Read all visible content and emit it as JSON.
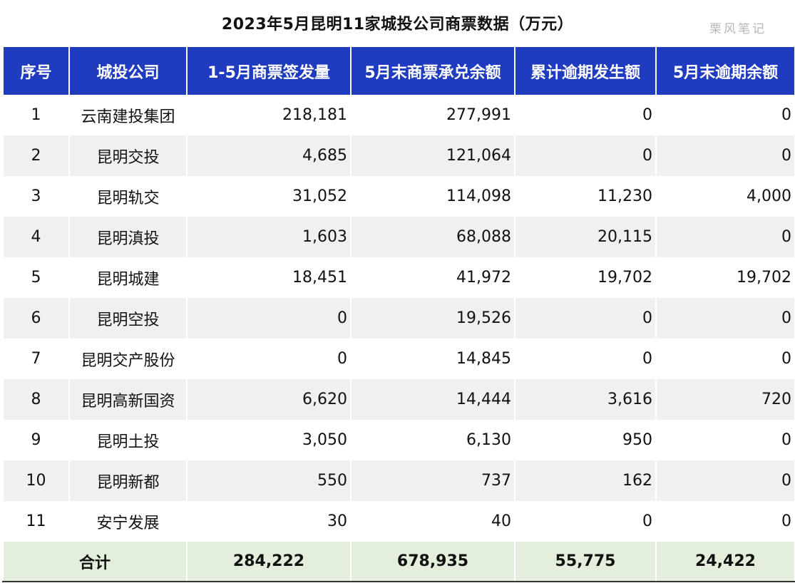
{
  "title": "2023年5月昆明11家城投公司商票数据（万元）",
  "watermark": "栗风笔记",
  "headers": [
    "序号",
    "城投公司",
    "1-5月商票签发量",
    "5月末商票承兑余额",
    "累计逾期发生额",
    "5月末逾期余额"
  ],
  "rows": [
    {
      "idx": "1",
      "name": "云南建投集团",
      "issued": "218,181",
      "acceptance": "277,991",
      "overdue_total": "0",
      "overdue_balance": "0"
    },
    {
      "idx": "2",
      "name": "昆明交投",
      "issued": "4,685",
      "acceptance": "121,064",
      "overdue_total": "0",
      "overdue_balance": "0"
    },
    {
      "idx": "3",
      "name": "昆明轨交",
      "issued": "31,052",
      "acceptance": "114,098",
      "overdue_total": "11,230",
      "overdue_balance": "4,000"
    },
    {
      "idx": "4",
      "name": "昆明滇投",
      "issued": "1,603",
      "acceptance": "68,088",
      "overdue_total": "20,115",
      "overdue_balance": "0"
    },
    {
      "idx": "5",
      "name": "昆明城建",
      "issued": "18,451",
      "acceptance": "41,972",
      "overdue_total": "19,702",
      "overdue_balance": "19,702"
    },
    {
      "idx": "6",
      "name": "昆明空投",
      "issued": "0",
      "acceptance": "19,526",
      "overdue_total": "0",
      "overdue_balance": "0"
    },
    {
      "idx": "7",
      "name": "昆明交产股份",
      "issued": "0",
      "acceptance": "14,845",
      "overdue_total": "0",
      "overdue_balance": "0"
    },
    {
      "idx": "8",
      "name": "昆明高新国资",
      "issued": "6,620",
      "acceptance": "14,444",
      "overdue_total": "3,616",
      "overdue_balance": "720"
    },
    {
      "idx": "9",
      "name": "昆明土投",
      "issued": "3,050",
      "acceptance": "6,130",
      "overdue_total": "950",
      "overdue_balance": "0"
    },
    {
      "idx": "10",
      "name": "昆明新都",
      "issued": "550",
      "acceptance": "737",
      "overdue_total": "162",
      "overdue_balance": "0"
    },
    {
      "idx": "11",
      "name": "安宁发展",
      "issued": "30",
      "acceptance": "40",
      "overdue_total": "0",
      "overdue_balance": "0"
    }
  ],
  "total": {
    "label": "合计",
    "issued": "284,222",
    "acceptance": "678,935",
    "overdue_total": "55,775",
    "overdue_balance": "24,422"
  },
  "colors": {
    "header_bg": "#1f3bbf",
    "stripe_bg": "#f0f0f0",
    "total_bg": "#e3efdc"
  }
}
